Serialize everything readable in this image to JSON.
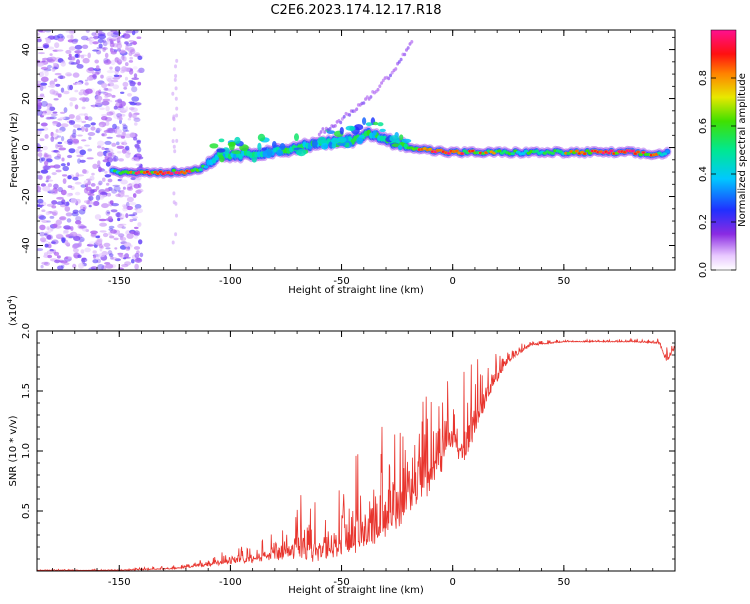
{
  "title": "C2E6.2023.174.12.17.R18",
  "chart_data": [
    {
      "type": "heatmap",
      "title": "C2E6.2023.174.12.17.R18",
      "xlabel": "Height of straight line (km)",
      "ylabel": "Frequency (Hz)",
      "xlim": [
        -187,
        100
      ],
      "ylim": [
        -50,
        48
      ],
      "x_ticks": [
        -150,
        -100,
        -50,
        0,
        50
      ],
      "x_tick_labels": [
        "-150",
        "-100",
        "-50",
        "0",
        "50"
      ],
      "y_ticks": [
        -40,
        -20,
        0,
        20,
        40
      ],
      "y_tick_labels": [
        "-40",
        "-20",
        "0",
        "20",
        "40"
      ],
      "ridge": [
        {
          "x": -153,
          "y": -10,
          "amp": 0.55
        },
        {
          "x": -140,
          "y": -10,
          "amp": 0.92
        },
        {
          "x": -130,
          "y": -10,
          "amp": 0.85
        },
        {
          "x": -120,
          "y": -10,
          "amp": 0.95
        },
        {
          "x": -112,
          "y": -8,
          "amp": 0.6
        },
        {
          "x": -105,
          "y": -3,
          "amp": 0.5
        },
        {
          "x": -95,
          "y": -3,
          "amp": 0.6
        },
        {
          "x": -85,
          "y": -2,
          "amp": 0.55
        },
        {
          "x": -75,
          "y": -1,
          "amp": 0.6
        },
        {
          "x": -65,
          "y": 1,
          "amp": 0.55
        },
        {
          "x": -55,
          "y": 2,
          "amp": 0.6
        },
        {
          "x": -45,
          "y": 3,
          "amp": 0.65
        },
        {
          "x": -38,
          "y": 6,
          "amp": 0.6
        },
        {
          "x": -30,
          "y": 3,
          "amp": 0.6
        },
        {
          "x": -22,
          "y": 1,
          "amp": 0.7
        },
        {
          "x": -12,
          "y": -1,
          "amp": 0.95
        },
        {
          "x": 0,
          "y": -2,
          "amp": 0.85
        },
        {
          "x": 12,
          "y": -2,
          "amp": 0.75
        },
        {
          "x": 30,
          "y": -2,
          "amp": 0.6
        },
        {
          "x": 50,
          "y": -2,
          "amp": 0.7
        },
        {
          "x": 65,
          "y": -2,
          "amp": 0.92
        },
        {
          "x": 80,
          "y": -2,
          "amp": 0.95
        },
        {
          "x": 90,
          "y": -3,
          "amp": 0.8
        },
        {
          "x": 97,
          "y": -2,
          "amp": 0.5
        }
      ],
      "secondary_branch": [
        {
          "x": -60,
          "y": 6
        },
        {
          "x": -52,
          "y": 10
        },
        {
          "x": -45,
          "y": 15
        },
        {
          "x": -38,
          "y": 20
        },
        {
          "x": -32,
          "y": 26
        },
        {
          "x": -26,
          "y": 32
        },
        {
          "x": -22,
          "y": 38
        },
        {
          "x": -18,
          "y": 44
        }
      ],
      "noise_region_x": [
        -187,
        -140
      ],
      "colorbar": {
        "label": "Normalized spectral amplitude",
        "range": [
          0.0,
          1.0
        ],
        "ticks": [
          0.0,
          0.2,
          0.4,
          0.6,
          0.8
        ],
        "tick_labels": [
          "0.0",
          "0.2",
          "0.4",
          "0.6",
          "0.8"
        ]
      }
    },
    {
      "type": "line",
      "xlabel": "Height of straight line (km)",
      "ylabel": "SNR (10 * v/v)",
      "scale_label": "(x10",
      "scale_exp": "4",
      "scale_close": ")",
      "xlim": [
        -187,
        100
      ],
      "ylim": [
        0,
        2.0
      ],
      "x_ticks": [
        -150,
        -100,
        -50,
        0,
        50
      ],
      "x_tick_labels": [
        "-150",
        "-100",
        "-50",
        "0",
        "50"
      ],
      "y_ticks": [
        0.5,
        1.0,
        1.5,
        2.0
      ],
      "y_tick_labels": [
        "0.5",
        "1.0",
        "1.5",
        "2.0"
      ],
      "line_color": "#e8352e",
      "envelope": [
        {
          "x": -187,
          "base": 0.005,
          "amp": 0.01
        },
        {
          "x": -150,
          "base": 0.005,
          "amp": 0.01
        },
        {
          "x": -125,
          "base": 0.02,
          "amp": 0.03
        },
        {
          "x": -110,
          "base": 0.05,
          "amp": 0.08
        },
        {
          "x": -95,
          "base": 0.08,
          "amp": 0.12
        },
        {
          "x": -80,
          "base": 0.12,
          "amp": 0.25
        },
        {
          "x": -70,
          "base": 0.15,
          "amp": 0.45
        },
        {
          "x": -60,
          "base": 0.12,
          "amp": 0.4
        },
        {
          "x": -50,
          "base": 0.2,
          "amp": 0.5
        },
        {
          "x": -40,
          "base": 0.25,
          "amp": 0.7
        },
        {
          "x": -30,
          "base": 0.4,
          "amp": 0.9
        },
        {
          "x": -20,
          "base": 0.55,
          "amp": 1.0
        },
        {
          "x": -12,
          "base": 0.75,
          "amp": 1.1
        },
        {
          "x": -5,
          "base": 0.9,
          "amp": 0.6
        },
        {
          "x": 0,
          "base": 1.1,
          "amp": 0.5
        },
        {
          "x": 5,
          "base": 0.95,
          "amp": 0.7
        },
        {
          "x": 10,
          "base": 1.2,
          "amp": 0.5
        },
        {
          "x": 18,
          "base": 1.55,
          "amp": 0.25
        },
        {
          "x": 25,
          "base": 1.75,
          "amp": 0.1
        },
        {
          "x": 35,
          "base": 1.88,
          "amp": 0.04
        },
        {
          "x": 50,
          "base": 1.91,
          "amp": 0.02
        },
        {
          "x": 80,
          "base": 1.91,
          "amp": 0.02
        },
        {
          "x": 93,
          "base": 1.9,
          "amp": 0.04
        },
        {
          "x": 96,
          "base": 1.75,
          "amp": 0.15
        },
        {
          "x": 100,
          "base": 1.85,
          "amp": 0.05
        }
      ]
    }
  ]
}
